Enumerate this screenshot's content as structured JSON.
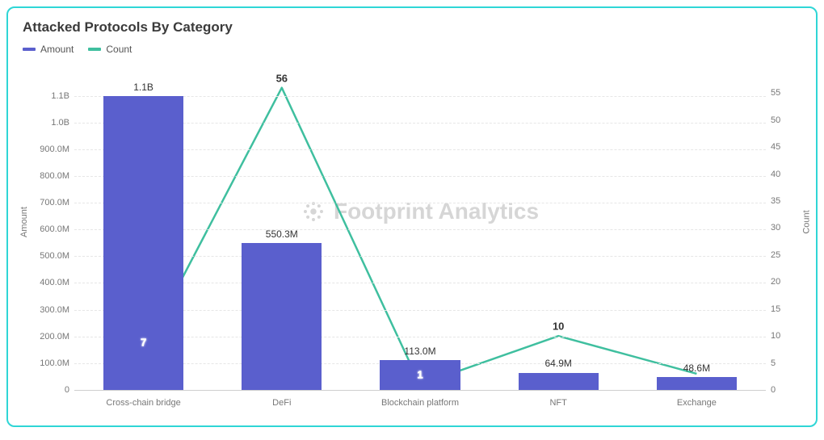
{
  "chart": {
    "type": "bar+line",
    "title": "Attacked Protocols By Category",
    "title_fontsize": 17,
    "title_color": "#3b3b3b",
    "border_color": "#2fd6d6",
    "border_radius": 10,
    "background_color": "#ffffff",
    "grid_color": "#e6e6e6",
    "baseline_color": "#cfcfcf",
    "tick_font_color": "#777777",
    "tick_fontsize": 11,
    "watermark_text": "Footprint Analytics",
    "watermark_color": "#d6d6d6",
    "legend": [
      {
        "label": "Amount",
        "color": "#5a5fcd",
        "kind": "bar"
      },
      {
        "label": "Count",
        "color": "#3fbf9f",
        "kind": "line"
      }
    ],
    "categories": [
      "Cross-chain bridge",
      "DeFi",
      "Blockchain platform",
      "NFT",
      "Exchange"
    ],
    "bars": {
      "series_name": "Amount",
      "color": "#5a5fcd",
      "width_fraction": 0.58,
      "values": [
        1100000000,
        550300000,
        113000000,
        64900000,
        48600000
      ],
      "value_labels": [
        "1.1B",
        "550.3M",
        "113.0M",
        "64.9M",
        "48.6M"
      ],
      "label_color": "#333333",
      "label_fontsize": 12
    },
    "line": {
      "series_name": "Count",
      "color": "#3fbf9f",
      "stroke_width": 2.5,
      "values": [
        7,
        56,
        1,
        10,
        3
      ],
      "value_labels": [
        "7",
        "56",
        "1",
        "10",
        ""
      ],
      "label_fontsize": 13
    },
    "y_left": {
      "label": "Amount",
      "min": 0,
      "max": 1150000000,
      "ticks": [
        0,
        100000000,
        200000000,
        300000000,
        400000000,
        500000000,
        600000000,
        700000000,
        800000000,
        900000000,
        1000000000,
        1100000000
      ],
      "tick_labels": [
        "0",
        "100.0M",
        "200.0M",
        "300.0M",
        "400.0M",
        "500.0M",
        "600.0M",
        "700.0M",
        "800.0M",
        "900.0M",
        "1.0B",
        "1.1B"
      ]
    },
    "y_right": {
      "label": "Count",
      "min": 0,
      "max": 57,
      "ticks": [
        0,
        5,
        10,
        15,
        20,
        25,
        30,
        35,
        40,
        45,
        50,
        55
      ],
      "tick_labels": [
        "0",
        "5",
        "10",
        "15",
        "20",
        "25",
        "30",
        "35",
        "40",
        "45",
        "50",
        "55"
      ]
    }
  }
}
